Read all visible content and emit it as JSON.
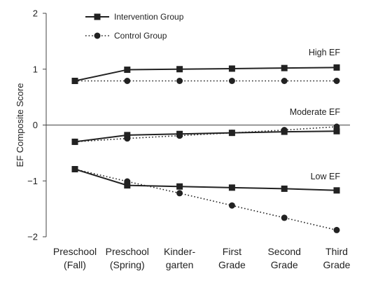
{
  "chart_data": {
    "type": "line",
    "ylabel": "EF Composite Score",
    "xlabel": "",
    "ylim": [
      -2,
      2
    ],
    "yticks": [
      {
        "value": 2,
        "label": "2"
      },
      {
        "value": 1,
        "label": "1"
      },
      {
        "value": 0,
        "label": "0"
      },
      {
        "value": -1,
        "label": "−1"
      },
      {
        "value": -2,
        "label": "−2"
      }
    ],
    "categories": [
      [
        "Preschool",
        "(Fall)"
      ],
      [
        "Preschool",
        "(Spring)"
      ],
      [
        "Kinder-",
        "garten"
      ],
      [
        "First",
        "Grade"
      ],
      [
        "Second",
        "Grade"
      ],
      [
        "Third",
        "Grade"
      ]
    ],
    "zero_line": true,
    "legend": {
      "placement": "top-left",
      "entries": [
        {
          "label": "Intervention Group",
          "marker": "square",
          "line": "solid"
        },
        {
          "label": "Control Group",
          "marker": "circle",
          "line": "dotted"
        }
      ]
    },
    "group_labels": [
      {
        "text": "High EF",
        "y": 1.3
      },
      {
        "text": "Moderate EF",
        "y": 0.23
      },
      {
        "text": "Low EF",
        "y": -0.92
      }
    ],
    "series": [
      {
        "group": "High EF",
        "legend": "Intervention Group",
        "marker": "square",
        "line": "solid",
        "values": [
          0.79,
          0.99,
          1.0,
          1.01,
          1.02,
          1.03
        ]
      },
      {
        "group": "High EF",
        "legend": "Control Group",
        "marker": "circle",
        "line": "dotted",
        "values": [
          0.79,
          0.79,
          0.79,
          0.79,
          0.79,
          0.79
        ]
      },
      {
        "group": "Moderate EF",
        "legend": "Intervention Group",
        "marker": "square",
        "line": "solid",
        "values": [
          -0.3,
          -0.18,
          -0.16,
          -0.14,
          -0.12,
          -0.11
        ]
      },
      {
        "group": "Moderate EF",
        "legend": "Control Group",
        "marker": "circle",
        "line": "dotted",
        "values": [
          -0.3,
          -0.24,
          -0.19,
          -0.14,
          -0.09,
          -0.03
        ]
      },
      {
        "group": "Low EF",
        "legend": "Intervention Group",
        "marker": "square",
        "line": "solid",
        "values": [
          -0.79,
          -1.08,
          -1.1,
          -1.12,
          -1.14,
          -1.17
        ]
      },
      {
        "group": "Low EF",
        "legend": "Control Group",
        "marker": "circle",
        "line": "dotted",
        "values": [
          -0.79,
          -1.01,
          -1.22,
          -1.44,
          -1.66,
          -1.88
        ]
      }
    ],
    "colors": {
      "line": "#222222",
      "axis": "#444444"
    }
  }
}
